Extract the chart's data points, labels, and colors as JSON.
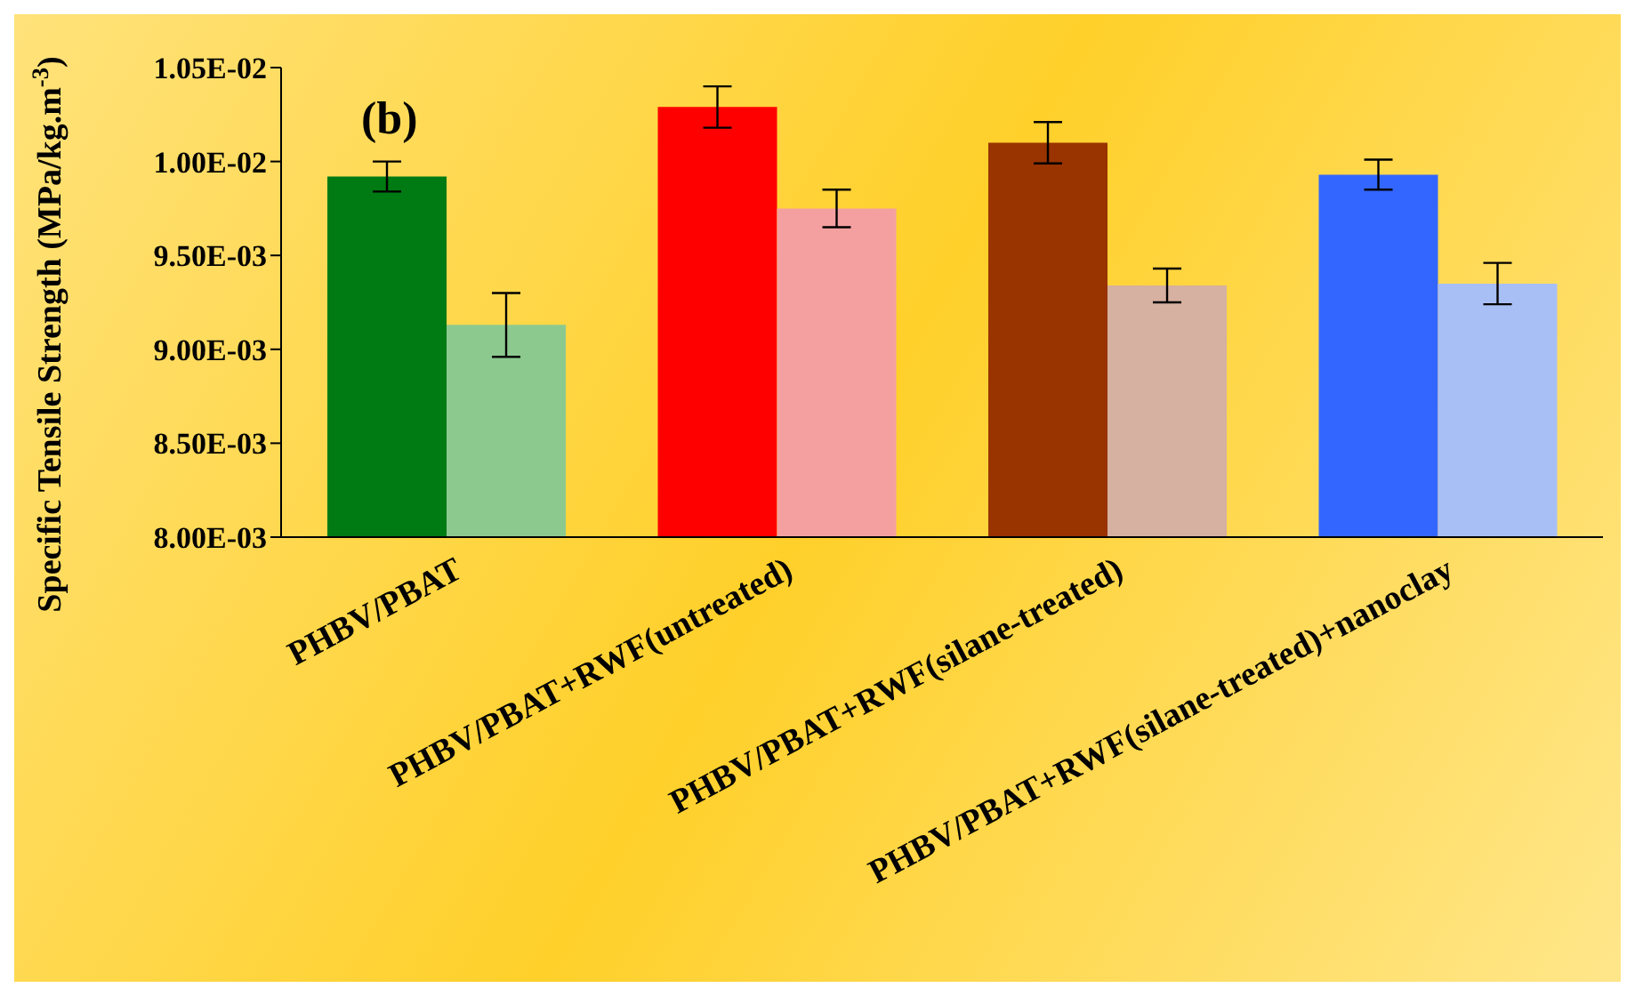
{
  "chart_data": {
    "type": "bar",
    "ylabel": "Specific Tensile Strength (MPa/kg.m$^{-3}$)",
    "categories": [
      "PHBV/PBAT",
      "PHBV/PBAT+RWF(untreated)",
      "PHBV/PBAT+RWF(silane-treated)",
      "PHBV/PBAT+RWF(silane-treated)+nanoclay"
    ],
    "series": [
      {
        "colors": [
          "#007a12",
          "#ff0000",
          "#993300",
          "#3366ff"
        ],
        "values": [
          0.00992,
          0.01029,
          0.0101,
          0.00993
        ],
        "errors": [
          8e-05,
          0.00011,
          0.00011,
          8e-05
        ]
      },
      {
        "colors": [
          "#8cc98f",
          "#f5a0a0",
          "#d6b0a0",
          "#a8bff5"
        ],
        "values": [
          0.00913,
          0.00975,
          0.00934,
          0.00935
        ],
        "errors": [
          0.00017,
          0.0001,
          9e-05,
          0.00011
        ]
      }
    ],
    "ylim": [
      0.008,
      0.0105
    ],
    "yticks": [
      {
        "value": 0.008,
        "label": "8.00E-03"
      },
      {
        "value": 0.0085,
        "label": "8.50E-03"
      },
      {
        "value": 0.009,
        "label": "9.00E-03"
      },
      {
        "value": 0.0095,
        "label": "9.50E-03"
      },
      {
        "value": 0.01,
        "label": "1.00E-02"
      },
      {
        "value": 0.0105,
        "label": "1.05E-02"
      }
    ],
    "annotations": [
      "(b)"
    ],
    "grid": false,
    "legend": false
  }
}
